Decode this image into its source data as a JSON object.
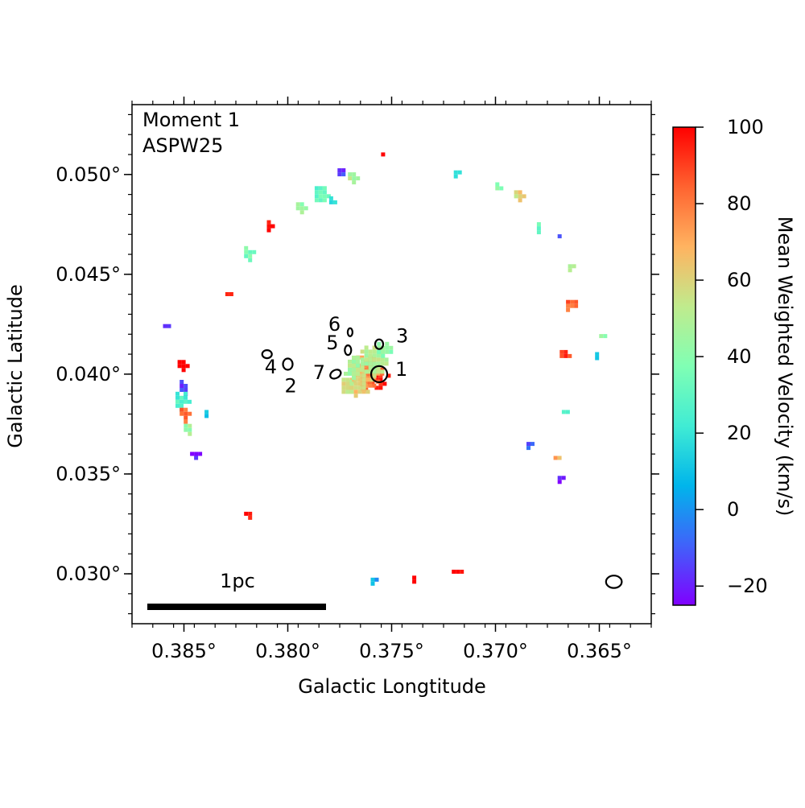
{
  "chart_data": {
    "type": "heatmap",
    "title": "",
    "annotations": {
      "line1": "Moment 1",
      "line2": "ASPW25",
      "scalebar": "1pc"
    },
    "xlabel": "Galactic Longtitude",
    "ylabel": "Galactic Latitude",
    "xlim": [
      0.3875,
      0.3625
    ],
    "ylim": [
      0.0275,
      0.0535
    ],
    "x_ticks": [
      {
        "value": 0.385,
        "label": "0.385°"
      },
      {
        "value": 0.38,
        "label": "0.380°"
      },
      {
        "value": 0.375,
        "label": "0.375°"
      },
      {
        "value": 0.37,
        "label": "0.370°"
      },
      {
        "value": 0.365,
        "label": "0.365°"
      }
    ],
    "y_ticks": [
      {
        "value": 0.03,
        "label": "0.030°"
      },
      {
        "value": 0.035,
        "label": "0.035°"
      },
      {
        "value": 0.04,
        "label": "0.040°"
      },
      {
        "value": 0.045,
        "label": "0.045°"
      },
      {
        "value": 0.05,
        "label": "0.050°"
      }
    ],
    "colorbar": {
      "label": "Mean Weighted Velocity (km/s)",
      "range": [
        -25,
        100
      ],
      "colormap": "rainbow",
      "ticks": [
        {
          "value": 100,
          "label": "100"
        },
        {
          "value": 80,
          "label": "80"
        },
        {
          "value": 60,
          "label": "60"
        },
        {
          "value": 40,
          "label": "40"
        },
        {
          "value": 20,
          "label": "20"
        },
        {
          "value": 0,
          "label": "0"
        },
        {
          "value": -20,
          "label": "−20"
        }
      ]
    },
    "sources": [
      {
        "id": "1",
        "l": 0.3756,
        "b": 0.04
      },
      {
        "id": "2",
        "l": 0.38,
        "b": 0.0405
      },
      {
        "id": "3",
        "l": 0.3756,
        "b": 0.0415
      },
      {
        "id": "4",
        "l": 0.381,
        "b": 0.041
      },
      {
        "id": "5",
        "l": 0.3771,
        "b": 0.0412
      },
      {
        "id": "6",
        "l": 0.377,
        "b": 0.0421
      },
      {
        "id": "7",
        "l": 0.3777,
        "b": 0.04
      }
    ],
    "emission_clumps": [
      {
        "l": 0.3758,
        "b": 0.04,
        "v": 92,
        "sl": 0.0006,
        "sb": 0.0006
      },
      {
        "l": 0.3763,
        "b": 0.0402,
        "v": 78,
        "sl": 0.0008,
        "sb": 0.0009
      },
      {
        "l": 0.3767,
        "b": 0.0397,
        "v": 62,
        "sl": 0.0007,
        "sb": 0.0007
      },
      {
        "l": 0.376,
        "b": 0.0408,
        "v": 50,
        "sl": 0.0007,
        "sb": 0.0008
      },
      {
        "l": 0.3755,
        "b": 0.0413,
        "v": 40,
        "sl": 0.0004,
        "sb": 0.0005
      },
      {
        "l": 0.377,
        "b": 0.0404,
        "v": 48,
        "sl": 0.0005,
        "sb": 0.0007
      },
      {
        "l": 0.3772,
        "b": 0.0395,
        "v": 55,
        "sl": 0.0004,
        "sb": 0.0005
      },
      {
        "l": 0.3852,
        "b": 0.0406,
        "v": 100,
        "sl": 0.0003,
        "sb": 0.0003
      },
      {
        "l": 0.3851,
        "b": 0.0395,
        "v": -15,
        "sl": 0.0003,
        "sb": 0.0004
      },
      {
        "l": 0.3852,
        "b": 0.0388,
        "v": 25,
        "sl": 0.0004,
        "sb": 0.0005
      },
      {
        "l": 0.385,
        "b": 0.0381,
        "v": 85,
        "sl": 0.0004,
        "sb": 0.0004
      },
      {
        "l": 0.3849,
        "b": 0.0374,
        "v": 45,
        "sl": 0.0003,
        "sb": 0.0003
      },
      {
        "l": 0.384,
        "b": 0.0382,
        "v": 10,
        "sl": 0.0002,
        "sb": 0.0002
      },
      {
        "l": 0.3846,
        "b": 0.0361,
        "v": -20,
        "sl": 0.0003,
        "sb": 0.0002
      },
      {
        "l": 0.382,
        "b": 0.0331,
        "v": 100,
        "sl": 0.0003,
        "sb": 0.0002
      },
      {
        "l": 0.386,
        "b": 0.0425,
        "v": -15,
        "sl": 0.0002,
        "sb": 0.0002
      },
      {
        "l": 0.383,
        "b": 0.0441,
        "v": 100,
        "sl": 0.0002,
        "sb": 0.0002
      },
      {
        "l": 0.382,
        "b": 0.0462,
        "v": 35,
        "sl": 0.0003,
        "sb": 0.0004
      },
      {
        "l": 0.381,
        "b": 0.0476,
        "v": 100,
        "sl": 0.0002,
        "sb": 0.0003
      },
      {
        "l": 0.3795,
        "b": 0.0485,
        "v": 45,
        "sl": 0.0003,
        "sb": 0.0003
      },
      {
        "l": 0.3785,
        "b": 0.0491,
        "v": 30,
        "sl": 0.0004,
        "sb": 0.0005
      },
      {
        "l": 0.3775,
        "b": 0.0502,
        "v": -15,
        "sl": 0.0003,
        "sb": 0.0003
      },
      {
        "l": 0.377,
        "b": 0.05,
        "v": 50,
        "sl": 0.0003,
        "sb": 0.0003
      },
      {
        "l": 0.3755,
        "b": 0.0511,
        "v": 100,
        "sl": 0.0002,
        "sb": 0.0002
      },
      {
        "l": 0.378,
        "b": 0.0488,
        "v": 20,
        "sl": 0.0002,
        "sb": 0.0003
      },
      {
        "l": 0.372,
        "b": 0.0502,
        "v": 15,
        "sl": 0.0002,
        "sb": 0.0002
      },
      {
        "l": 0.37,
        "b": 0.0495,
        "v": 40,
        "sl": 0.0002,
        "sb": 0.0003
      },
      {
        "l": 0.369,
        "b": 0.0491,
        "v": 60,
        "sl": 0.0003,
        "sb": 0.0003
      },
      {
        "l": 0.368,
        "b": 0.0475,
        "v": 35,
        "sl": 0.0002,
        "sb": 0.0003
      },
      {
        "l": 0.367,
        "b": 0.047,
        "v": -10,
        "sl": 0.0002,
        "sb": 0.0002
      },
      {
        "l": 0.3665,
        "b": 0.0455,
        "v": 50,
        "sl": 0.0002,
        "sb": 0.0002
      },
      {
        "l": 0.3665,
        "b": 0.0436,
        "v": 85,
        "sl": 0.0003,
        "sb": 0.0005
      },
      {
        "l": 0.365,
        "b": 0.042,
        "v": 40,
        "sl": 0.0002,
        "sb": 0.0002
      },
      {
        "l": 0.3668,
        "b": 0.0411,
        "v": 90,
        "sl": 0.0003,
        "sb": 0.0003
      },
      {
        "l": 0.3652,
        "b": 0.0411,
        "v": 10,
        "sl": 0.0002,
        "sb": 0.0002
      },
      {
        "l": 0.3668,
        "b": 0.0382,
        "v": 30,
        "sl": 0.0002,
        "sb": 0.0002
      },
      {
        "l": 0.3685,
        "b": 0.0366,
        "v": -10,
        "sl": 0.0002,
        "sb": 0.0002
      },
      {
        "l": 0.3672,
        "b": 0.0359,
        "v": 70,
        "sl": 0.0002,
        "sb": 0.0002
      },
      {
        "l": 0.367,
        "b": 0.0349,
        "v": -20,
        "sl": 0.0002,
        "sb": 0.0002
      },
      {
        "l": 0.372,
        "b": 0.0302,
        "v": 100,
        "sl": 0.0003,
        "sb": 0.0002
      },
      {
        "l": 0.376,
        "b": 0.0298,
        "v": 5,
        "sl": 0.0002,
        "sb": 0.0002
      },
      {
        "l": 0.374,
        "b": 0.0299,
        "v": 100,
        "sl": 0.0002,
        "sb": 0.0002
      }
    ],
    "beam": {
      "l": 0.3643,
      "b": 0.0296,
      "rl": 0.00038,
      "rb": 0.0003
    },
    "grid": false,
    "legend": "none"
  }
}
